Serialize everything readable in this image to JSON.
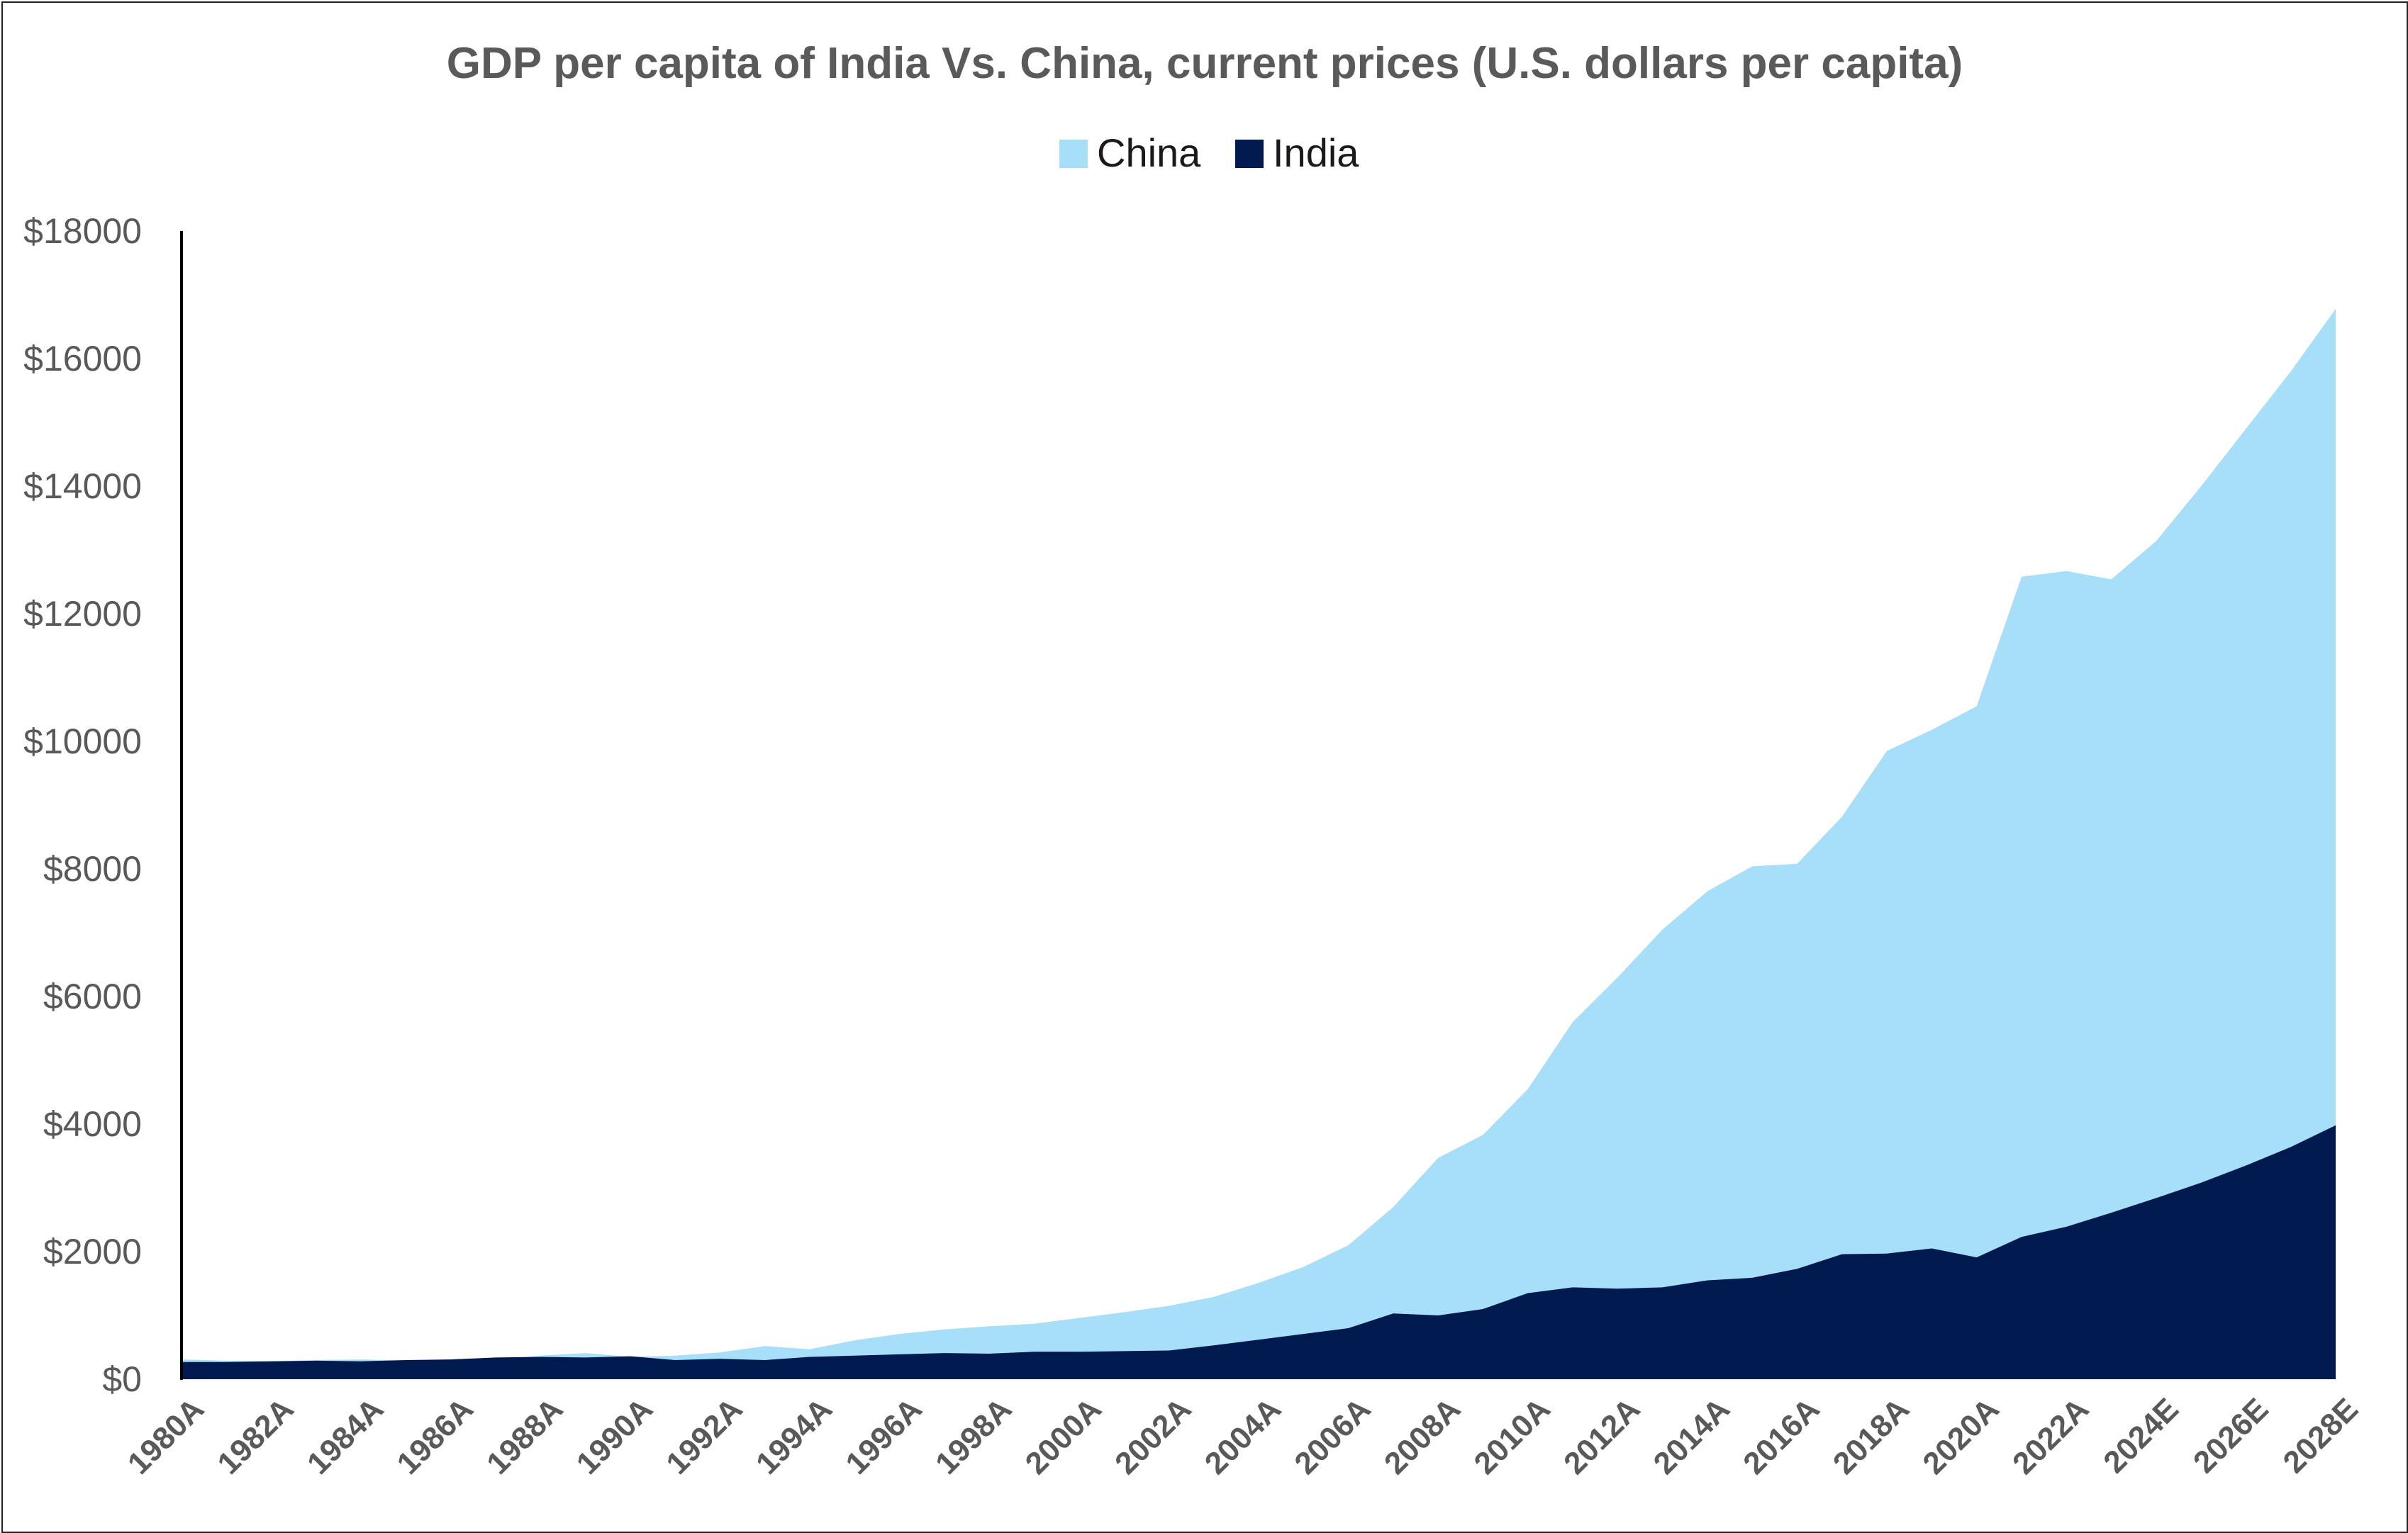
{
  "chart_data": {
    "type": "area",
    "title": "GDP per capita of India Vs. China, current prices (U.S. dollars per capita)",
    "xlabel": "",
    "ylabel": "",
    "ylim": [
      0,
      18000
    ],
    "yticks": [
      "$0",
      "$2000",
      "$4000",
      "$6000",
      "$8000",
      "$10000",
      "$12000",
      "$14000",
      "$16000",
      "$18000"
    ],
    "ytick_values": [
      0,
      2000,
      4000,
      6000,
      8000,
      10000,
      12000,
      14000,
      16000,
      18000
    ],
    "legend_position": "top-center",
    "grid": false,
    "x": [
      "1980A",
      "1981A",
      "1982A",
      "1983A",
      "1984A",
      "1985A",
      "1986A",
      "1987A",
      "1988A",
      "1989A",
      "1990A",
      "1991A",
      "1992A",
      "1993A",
      "1994A",
      "1995A",
      "1996A",
      "1997A",
      "1998A",
      "1999A",
      "2000A",
      "2001A",
      "2002A",
      "2003A",
      "2004A",
      "2005A",
      "2006A",
      "2007A",
      "2008A",
      "2009A",
      "2010A",
      "2011A",
      "2012A",
      "2013A",
      "2014A",
      "2015A",
      "2016A",
      "2017A",
      "2018A",
      "2019A",
      "2020A",
      "2021A",
      "2022A",
      "2023A",
      "2024E",
      "2025E",
      "2026E",
      "2027E",
      "2028E"
    ],
    "x_tick_labels": [
      "1980A",
      "1982A",
      "1984A",
      "1986A",
      "1988A",
      "1990A",
      "1992A",
      "1994A",
      "1996A",
      "1998A",
      "2000A",
      "2002A",
      "2004A",
      "2006A",
      "2008A",
      "2010A",
      "2012A",
      "2014A",
      "2016A",
      "2018A",
      "2020A",
      "2022A",
      "2024E",
      "2026E",
      "2028E"
    ],
    "series": [
      {
        "name": "China",
        "color": "#a6dff7",
        "values": [
          310,
          290,
          280,
          300,
          310,
          290,
          280,
          300,
          370,
          410,
          350,
          370,
          420,
          520,
          470,
          610,
          710,
          780,
          830,
          870,
          960,
          1050,
          1150,
          1290,
          1510,
          1760,
          2100,
          2700,
          3470,
          3830,
          4550,
          5600,
          6300,
          7050,
          7650,
          8040,
          8080,
          8820,
          9850,
          10180,
          10550,
          12580,
          12670,
          12540,
          13140,
          14000,
          14900,
          15800,
          16780
        ]
      },
      {
        "name": "India",
        "color": "#001a4f",
        "values": [
          270,
          270,
          280,
          290,
          280,
          300,
          310,
          340,
          350,
          340,
          360,
          300,
          320,
          300,
          350,
          370,
          390,
          410,
          400,
          430,
          430,
          440,
          450,
          530,
          620,
          710,
          800,
          1030,
          1000,
          1100,
          1350,
          1440,
          1420,
          1440,
          1550,
          1590,
          1730,
          1960,
          1970,
          2050,
          1910,
          2230,
          2390,
          2610,
          2840,
          3080,
          3350,
          3640,
          3980
        ]
      }
    ]
  }
}
